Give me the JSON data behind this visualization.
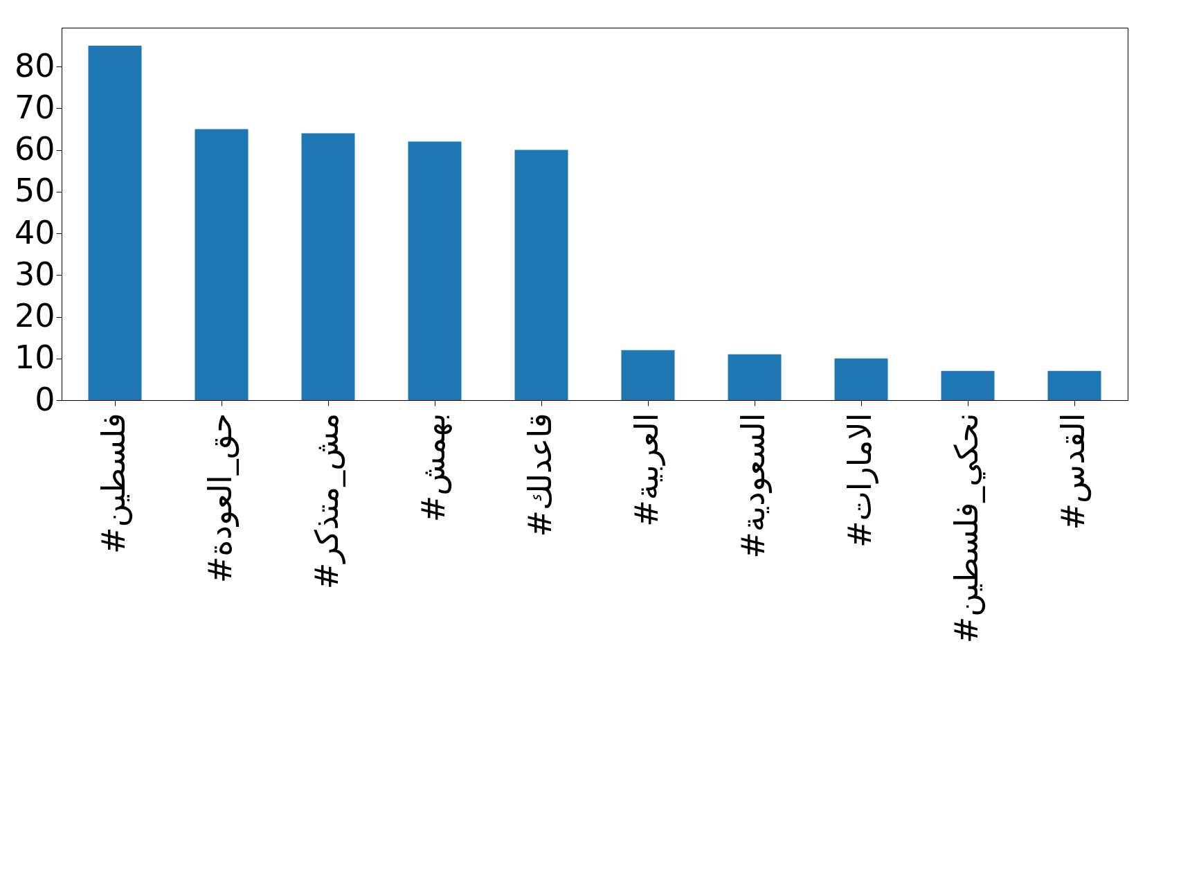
{
  "chart_data": {
    "type": "bar",
    "categories": [
      "#فلسطين",
      "#حق_العودة",
      "#مش_متذكر",
      "#بهمش",
      "#قاعدلك",
      "#العربية",
      "#السعودية",
      "#الامارات",
      "#نحكي_فلسطين",
      "#القدس"
    ],
    "values": [
      85,
      65,
      64,
      62,
      60,
      12,
      11,
      10,
      7,
      7
    ],
    "color": "#1f77b4",
    "ylim": [
      0,
      89.3
    ],
    "yticks": [
      0,
      10,
      20,
      30,
      40,
      50,
      60,
      70,
      80
    ],
    "grid": false
  }
}
